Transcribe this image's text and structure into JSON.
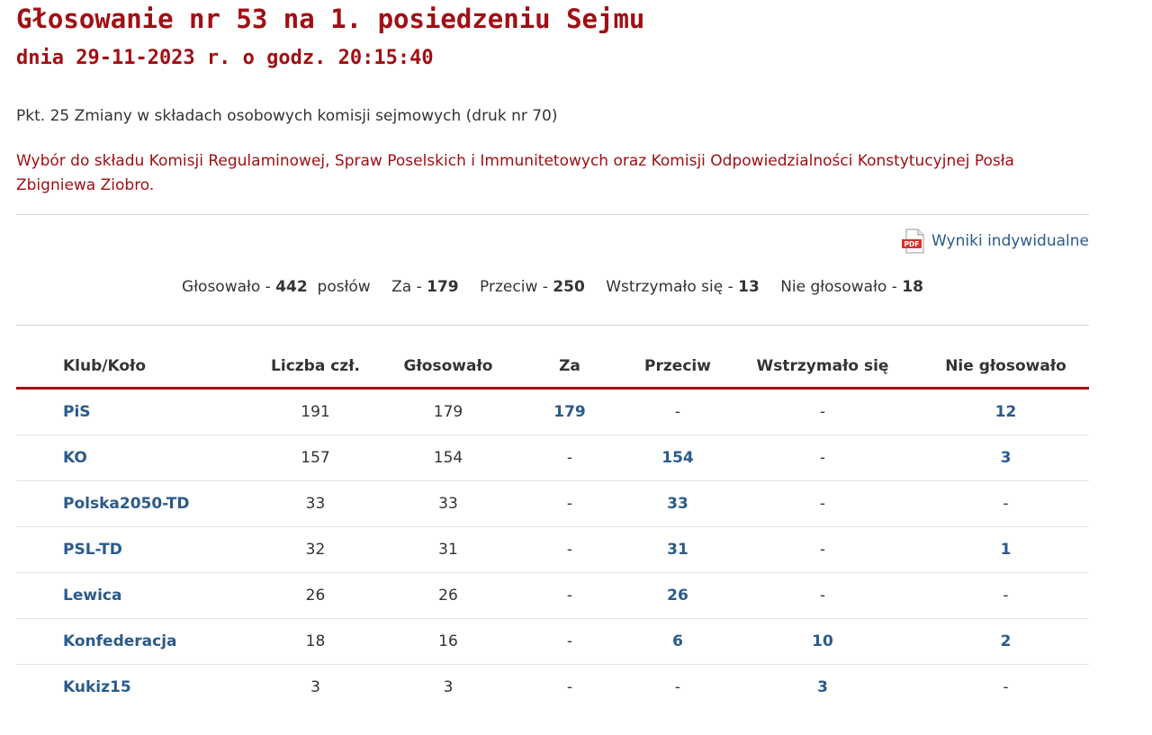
{
  "title": "Głosowanie nr 53 na 1. posiedzeniu Sejmu",
  "subtitle": "dnia 29-11-2023 r. o godz. 20:15:40",
  "agenda_point": "Pkt. 25 Zmiany w składach osobowych komisji sejmowych (druk nr 70)",
  "description": "Wybór do składu Komisji Regulaminowej, Spraw Poselskich i Immunitetowych oraz Komisji Odpowiedzialności Konstytucyjnej Posła Zbigniewa Ziobro.",
  "pdf_link": {
    "label": "Wyniki indywidualne",
    "icon": "pdf-icon",
    "icon_text": "PDF"
  },
  "summary": {
    "voted_label": "Głosowało - ",
    "voted": "442",
    "voted_suffix": " posłów",
    "for_label": "Za - ",
    "for": "179",
    "against_label": "Przeciw - ",
    "against": "250",
    "abstain_label": "Wstrzymało się - ",
    "abstain": "13",
    "not_voted_label": "Nie głosowało - ",
    "not_voted": "18"
  },
  "table": {
    "headers": [
      "Klub/Koło",
      "Liczba czł.",
      "Głosowało",
      "Za",
      "Przeciw",
      "Wstrzymało się",
      "Nie głosowało"
    ],
    "rows": [
      [
        "PiS",
        "191",
        "179",
        "179",
        "-",
        "-",
        "12"
      ],
      [
        "KO",
        "157",
        "154",
        "-",
        "154",
        "-",
        "3"
      ],
      [
        "Polska2050-TD",
        "33",
        "33",
        "-",
        "33",
        "-",
        "-"
      ],
      [
        "PSL-TD",
        "32",
        "31",
        "-",
        "31",
        "-",
        "1"
      ],
      [
        "Lewica",
        "26",
        "26",
        "-",
        "26",
        "-",
        "-"
      ],
      [
        "Konfederacja",
        "18",
        "16",
        "-",
        "6",
        "10",
        "2"
      ],
      [
        "Kukiz15",
        "3",
        "3",
        "-",
        "-",
        "3",
        "-"
      ]
    ]
  },
  "colors": {
    "accent": "#a00f14",
    "link": "#2a5b8c",
    "text": "#333333",
    "divider": "#d6d6d6"
  }
}
